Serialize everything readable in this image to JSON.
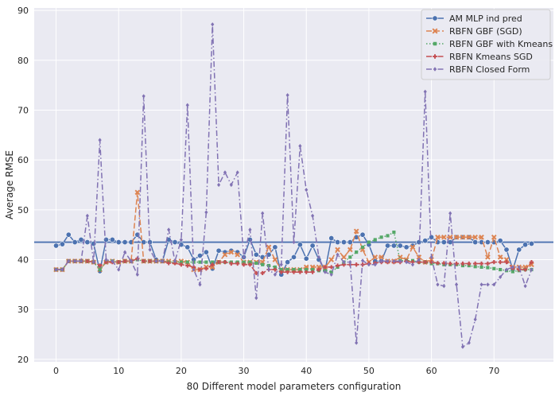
{
  "chart_data": {
    "type": "line",
    "title": "",
    "xlabel": "80 Different model parameters configuration",
    "ylabel": "Average RMSE",
    "xlim": [
      -3.5,
      79.5
    ],
    "ylim": [
      19.5,
      90.5
    ],
    "xticks": [
      0,
      10,
      20,
      30,
      40,
      50,
      60,
      70
    ],
    "yticks": [
      20,
      30,
      40,
      50,
      60,
      70,
      80,
      90
    ],
    "grid": true,
    "legend_position": "top-right",
    "hline": {
      "y": 43.5,
      "color": "#4c72b0"
    },
    "series": [
      {
        "name": "AM MLP ind pred",
        "color": "#4c72b0",
        "marker": "circle",
        "dash": "solid",
        "x": [
          0,
          1,
          2,
          3,
          4,
          5,
          6,
          7,
          8,
          9,
          10,
          11,
          12,
          13,
          14,
          15,
          16,
          17,
          18,
          19,
          20,
          21,
          22,
          23,
          24,
          25,
          26,
          27,
          28,
          29,
          30,
          31,
          32,
          33,
          34,
          35,
          36,
          37,
          38,
          39,
          40,
          41,
          42,
          43,
          44,
          45,
          46,
          47,
          48,
          49,
          50,
          51,
          52,
          53,
          54,
          55,
          56,
          57,
          58,
          59,
          60,
          61,
          62,
          63,
          64,
          65,
          66,
          67,
          68,
          69,
          70,
          71,
          72,
          73,
          74,
          75,
          76
        ],
        "y": [
          42.8,
          43.1,
          45.0,
          43.5,
          44.0,
          43.5,
          43.2,
          37.7,
          44.0,
          44.0,
          43.5,
          43.5,
          43.5,
          45.0,
          43.5,
          43.5,
          40.0,
          39.7,
          44.0,
          43.5,
          43.0,
          42.5,
          40.0,
          40.8,
          41.5,
          38.2,
          41.8,
          41.5,
          41.8,
          41.5,
          40.5,
          44.0,
          41.0,
          40.5,
          41.0,
          42.5,
          37.0,
          39.5,
          40.5,
          43.0,
          40.2,
          42.8,
          40.0,
          37.8,
          44.3,
          43.5,
          43.5,
          43.5,
          44.5,
          45.0,
          43.0,
          39.7,
          39.7,
          42.8,
          42.8,
          42.8,
          42.5,
          42.8,
          43.5,
          43.8,
          44.5,
          43.5,
          43.5,
          43.5,
          44.5,
          44.5,
          44.5,
          43.5,
          43.5,
          43.5,
          43.5,
          43.8,
          42.0,
          38.0,
          42.0,
          43.0,
          43.2
        ]
      },
      {
        "name": "RBFN GBF (SGD)",
        "color": "#dd8452",
        "marker": "x",
        "dash": "dashed",
        "x": [
          0,
          1,
          2,
          3,
          4,
          5,
          6,
          7,
          8,
          9,
          10,
          11,
          12,
          13,
          14,
          15,
          16,
          17,
          18,
          19,
          20,
          21,
          22,
          23,
          24,
          25,
          26,
          27,
          28,
          29,
          30,
          31,
          32,
          33,
          34,
          35,
          36,
          37,
          38,
          39,
          40,
          41,
          42,
          43,
          44,
          45,
          46,
          47,
          48,
          49,
          50,
          51,
          52,
          53,
          54,
          55,
          56,
          57,
          58,
          59,
          60,
          61,
          62,
          63,
          64,
          65,
          66,
          67,
          68,
          69,
          70,
          71,
          72,
          73,
          74,
          75,
          76
        ],
        "y": [
          38.0,
          38.0,
          39.7,
          39.7,
          39.7,
          39.7,
          39.5,
          38.0,
          39.5,
          39.7,
          39.5,
          39.7,
          39.7,
          53.5,
          39.7,
          39.7,
          39.7,
          39.7,
          39.7,
          39.5,
          39.7,
          39.5,
          38.0,
          38.0,
          38.5,
          38.5,
          39.5,
          41.0,
          41.5,
          41.0,
          39.5,
          39.5,
          39.5,
          39.5,
          42.5,
          40.0,
          38.0,
          38.0,
          38.0,
          38.0,
          38.5,
          38.5,
          38.5,
          38.5,
          40.0,
          42.0,
          40.5,
          42.0,
          45.7,
          42.0,
          39.5,
          40.5,
          40.5,
          39.7,
          39.7,
          40.5,
          40.0,
          42.5,
          40.5,
          39.5,
          40.0,
          44.5,
          44.5,
          44.5,
          44.5,
          44.5,
          44.5,
          44.5,
          44.5,
          40.5,
          44.5,
          40.5,
          40.0,
          38.5,
          38.5,
          38.5,
          39.0
        ]
      },
      {
        "name": "RBFN GBF with Kmeans",
        "color": "#55a868",
        "marker": "square",
        "dash": "dotted",
        "x": [
          0,
          1,
          2,
          3,
          4,
          5,
          6,
          7,
          8,
          9,
          10,
          11,
          12,
          13,
          14,
          15,
          16,
          17,
          18,
          19,
          20,
          21,
          22,
          23,
          24,
          25,
          26,
          27,
          28,
          29,
          30,
          31,
          32,
          33,
          34,
          35,
          36,
          37,
          38,
          39,
          40,
          41,
          42,
          43,
          44,
          45,
          46,
          47,
          48,
          49,
          50,
          51,
          52,
          53,
          54,
          55,
          56,
          57,
          58,
          59,
          60,
          61,
          62,
          63,
          64,
          65,
          66,
          67,
          68,
          69,
          70,
          71,
          72,
          73,
          74,
          75,
          76
        ],
        "y": [
          38.0,
          38.0,
          39.7,
          39.7,
          39.7,
          39.7,
          39.5,
          38.0,
          39.5,
          39.7,
          39.5,
          39.7,
          39.7,
          40.0,
          39.7,
          39.7,
          39.7,
          39.7,
          39.5,
          39.5,
          39.5,
          39.5,
          39.5,
          39.5,
          39.5,
          39.5,
          39.5,
          39.5,
          39.5,
          39.5,
          39.5,
          39.5,
          39.3,
          39.0,
          38.8,
          38.5,
          38.0,
          38.0,
          38.0,
          38.0,
          38.0,
          38.0,
          37.8,
          37.8,
          37.5,
          38.5,
          39.5,
          40.5,
          41.5,
          42.5,
          43.5,
          44.0,
          44.5,
          44.8,
          45.5,
          39.8,
          39.8,
          39.8,
          39.5,
          39.5,
          39.2,
          39.2,
          39.0,
          39.0,
          39.0,
          38.8,
          38.8,
          38.6,
          38.5,
          38.4,
          38.2,
          38.0,
          37.8,
          37.6,
          37.8,
          38.0,
          38.0
        ]
      },
      {
        "name": "RBFN  Kmeans SGD",
        "color": "#c44e52",
        "marker": "plus",
        "dash": "dashdot",
        "x": [
          0,
          1,
          2,
          3,
          4,
          5,
          6,
          7,
          8,
          9,
          10,
          11,
          12,
          13,
          14,
          15,
          16,
          17,
          18,
          19,
          20,
          21,
          22,
          23,
          24,
          25,
          26,
          27,
          28,
          29,
          30,
          31,
          32,
          33,
          34,
          35,
          36,
          37,
          38,
          39,
          40,
          41,
          42,
          43,
          44,
          45,
          46,
          47,
          48,
          49,
          50,
          51,
          52,
          53,
          54,
          55,
          56,
          57,
          58,
          59,
          60,
          61,
          62,
          63,
          64,
          65,
          66,
          67,
          68,
          69,
          70,
          71,
          72,
          73,
          74,
          75,
          76
        ],
        "y": [
          38.0,
          38.0,
          39.7,
          39.7,
          39.7,
          39.7,
          39.5,
          38.8,
          39.5,
          39.5,
          39.5,
          39.7,
          39.7,
          40.2,
          39.7,
          39.7,
          39.7,
          39.7,
          39.3,
          39.3,
          39.0,
          38.8,
          38.5,
          38.0,
          38.2,
          39.0,
          39.5,
          39.5,
          39.2,
          39.2,
          39.0,
          39.0,
          37.3,
          37.3,
          38.0,
          38.0,
          37.5,
          37.5,
          37.5,
          37.5,
          37.5,
          37.5,
          38.0,
          38.5,
          38.5,
          38.8,
          39.0,
          39.0,
          39.0,
          39.0,
          39.2,
          39.3,
          39.5,
          39.5,
          39.5,
          39.5,
          39.7,
          39.5,
          39.5,
          39.5,
          39.5,
          39.3,
          39.3,
          39.2,
          39.2,
          39.2,
          39.2,
          39.2,
          39.2,
          39.2,
          39.5,
          39.5,
          39.5,
          38.3,
          38.0,
          38.0,
          39.5
        ]
      },
      {
        "name": "RBFN Closed Form",
        "color": "#8172b3",
        "marker": "diamond",
        "dash": "dashdot",
        "x": [
          0,
          1,
          2,
          3,
          4,
          5,
          6,
          7,
          8,
          9,
          10,
          11,
          12,
          13,
          14,
          15,
          16,
          17,
          18,
          19,
          20,
          21,
          22,
          23,
          24,
          25,
          26,
          27,
          28,
          29,
          30,
          31,
          32,
          33,
          34,
          35,
          36,
          37,
          38,
          39,
          40,
          41,
          42,
          43,
          44,
          45,
          46,
          47,
          48,
          49,
          50,
          51,
          52,
          53,
          54,
          55,
          56,
          57,
          58,
          59,
          60,
          61,
          62,
          63,
          64,
          65,
          66,
          67,
          68,
          69,
          70,
          71,
          72,
          73,
          74,
          75,
          76
        ],
        "y": [
          38.0,
          38.0,
          39.7,
          39.7,
          39.7,
          48.8,
          39.5,
          64.0,
          40.0,
          39.7,
          38.0,
          41.5,
          39.7,
          37.0,
          72.8,
          42.0,
          39.7,
          39.7,
          46.0,
          39.7,
          44.0,
          71.0,
          38.0,
          35.0,
          49.5,
          87.2,
          55.0,
          57.5,
          55.0,
          57.5,
          40.5,
          46.0,
          32.3,
          49.3,
          38.0,
          37.0,
          39.0,
          73.0,
          43.5,
          62.8,
          54.0,
          48.8,
          40.5,
          37.5,
          37.0,
          41.0,
          39.5,
          39.5,
          23.3,
          39.8,
          39.0,
          39.0,
          39.7,
          39.7,
          39.7,
          39.7,
          39.5,
          39.0,
          40.0,
          73.7,
          40.5,
          35.0,
          34.7,
          49.3,
          35.0,
          22.5,
          23.3,
          28.0,
          35.0,
          35.0,
          35.0,
          36.5,
          38.0,
          38.5,
          38.5,
          34.7,
          38.0
        ]
      }
    ]
  }
}
